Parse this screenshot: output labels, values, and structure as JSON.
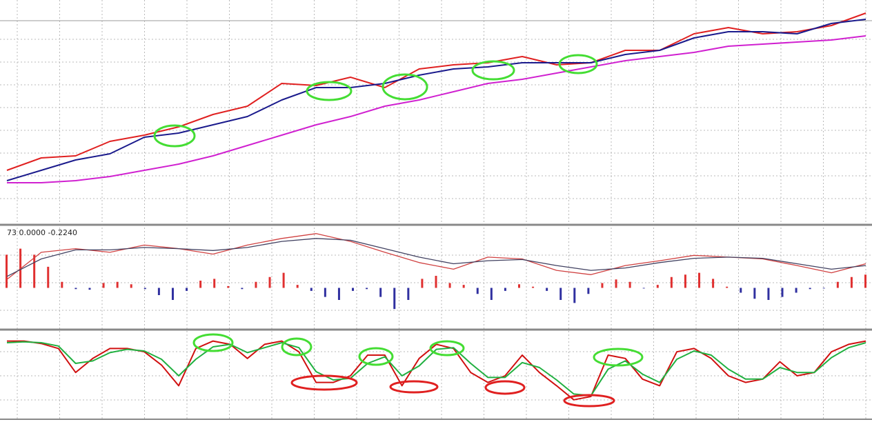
{
  "chart_data": [
    {
      "type": "line",
      "ylim": [
        0,
        100
      ],
      "series": [
        {
          "color": "#e02020",
          "values": [
            21,
            27,
            28,
            35,
            38,
            42,
            48,
            52,
            63,
            62,
            66,
            61,
            70,
            72,
            73,
            76,
            72,
            73,
            79,
            79,
            87,
            90,
            87,
            88,
            91,
            97
          ]
        },
        {
          "color": "#1a1a8c",
          "values": [
            16,
            21,
            26,
            29,
            37,
            39,
            43,
            47,
            55,
            61,
            61,
            63,
            67,
            70,
            71,
            73,
            73,
            73,
            77,
            79,
            85,
            88,
            88,
            87,
            92,
            94
          ]
        },
        {
          "color": "#d020d0",
          "values": [
            15,
            15,
            16,
            18,
            21,
            24,
            28,
            33,
            38,
            43,
            47,
            52,
            55,
            59,
            63,
            65,
            68,
            71,
            74,
            76,
            78,
            81,
            82,
            83,
            84,
            86
          ]
        }
      ]
    },
    {
      "type": "macd",
      "title": "73 0.0000 -0.2240",
      "ylim": [
        -0.6,
        1.0
      ],
      "histogram": {
        "pos_color": "#e03030",
        "neg_color": "#3030a0",
        "values": [
          0.55,
          0.65,
          0.55,
          0.35,
          0.1,
          -0.02,
          -0.03,
          0.08,
          0.1,
          0.06,
          -0.02,
          -0.12,
          -0.2,
          -0.05,
          0.12,
          0.15,
          0.03,
          -0.02,
          0.1,
          0.18,
          0.25,
          0.05,
          -0.05,
          -0.15,
          -0.2,
          -0.05,
          -0.02,
          -0.15,
          -0.35,
          -0.2,
          0.15,
          0.2,
          0.08,
          0.05,
          -0.1,
          -0.2,
          -0.05,
          0.06,
          0.02,
          -0.05,
          -0.2,
          -0.25,
          -0.1,
          0.08,
          0.14,
          0.1,
          -0.01,
          0.05,
          0.18,
          0.22,
          0.25,
          0.15,
          0.02,
          -0.08,
          -0.18,
          -0.2,
          -0.15,
          -0.08,
          -0.02,
          -0.01,
          0.1,
          0.18,
          0.22
        ]
      },
      "series": [
        {
          "color": "#d04040",
          "values": [
            0.14,
            0.59,
            0.65,
            0.59,
            0.71,
            0.65,
            0.56,
            0.71,
            0.82,
            0.9,
            0.77,
            0.59,
            0.42,
            0.31,
            0.51,
            0.48,
            0.29,
            0.22,
            0.37,
            0.45,
            0.54,
            0.51,
            0.48,
            0.37,
            0.25,
            0.4
          ]
        },
        {
          "color": "#404060",
          "values": [
            0.19,
            0.48,
            0.63,
            0.63,
            0.67,
            0.65,
            0.62,
            0.67,
            0.77,
            0.82,
            0.79,
            0.65,
            0.51,
            0.4,
            0.45,
            0.47,
            0.37,
            0.29,
            0.33,
            0.42,
            0.49,
            0.51,
            0.49,
            0.4,
            0.31,
            0.37
          ]
        }
      ]
    },
    {
      "type": "line",
      "ylim": [
        0,
        100
      ],
      "series": [
        {
          "color": "#d01010",
          "values": [
            92,
            92,
            89,
            83,
            54,
            71,
            83,
            83,
            79,
            63,
            38,
            83,
            92,
            88,
            71,
            88,
            92,
            79,
            42,
            42,
            50,
            75,
            75,
            38,
            71,
            88,
            83,
            54,
            42,
            50,
            75,
            54,
            38,
            21,
            25,
            75,
            71,
            46,
            38,
            79,
            83,
            71,
            50,
            42,
            46,
            67,
            50,
            54,
            79,
            88,
            92
          ]
        },
        {
          "color": "#20b040",
          "values": [
            90,
            91,
            90,
            86,
            65,
            68,
            78,
            82,
            80,
            70,
            50,
            70,
            85,
            88,
            78,
            84,
            90,
            84,
            55,
            45,
            47,
            65,
            73,
            50,
            62,
            82,
            84,
            65,
            48,
            48,
            66,
            60,
            45,
            28,
            26,
            58,
            68,
            52,
            42,
            70,
            80,
            75,
            58,
            46,
            46,
            60,
            54,
            54,
            72,
            84,
            90
          ]
        }
      ]
    }
  ]
}
